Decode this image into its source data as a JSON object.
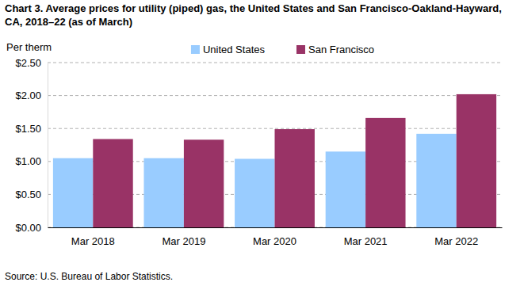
{
  "chart_data": {
    "type": "bar",
    "title": "Chart 3. Average prices for utility (piped) gas, the United States and San Francisco-Oakland-Hayward, CA, 2018–22 (as of March)",
    "y_label": "Per therm",
    "source": "Source: U.S. Bureau of Labor Statistics.",
    "categories": [
      "Mar 2018",
      "Mar 2019",
      "Mar 2020",
      "Mar 2021",
      "Mar 2022"
    ],
    "series": [
      {
        "name": "United States",
        "color": "#99ccff",
        "values": [
          1.05,
          1.05,
          1.04,
          1.15,
          1.42
        ]
      },
      {
        "name": "San Francisco",
        "color": "#993366",
        "values": [
          1.34,
          1.33,
          1.49,
          1.66,
          2.02
        ]
      }
    ],
    "ylim": [
      0,
      2.5
    ],
    "yticks": [
      {
        "value": 0,
        "label": "$0.00"
      },
      {
        "value": 0.5,
        "label": "$0.50"
      },
      {
        "value": 1,
        "label": "$1.00"
      },
      {
        "value": 1.5,
        "label": "$1.50"
      },
      {
        "value": 2,
        "label": "$2.00"
      },
      {
        "value": 2.5,
        "label": "$2.50"
      }
    ],
    "grid": true,
    "legend": "top"
  }
}
